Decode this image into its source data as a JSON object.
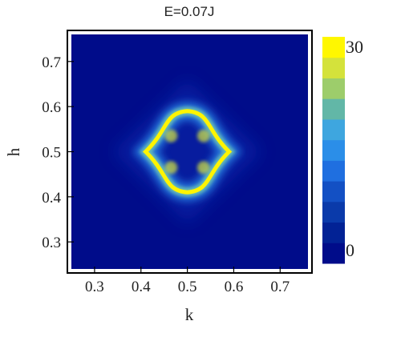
{
  "chart_data": {
    "type": "heatmap",
    "title": "E=0.07J",
    "xlabel": "k",
    "ylabel": "h",
    "xlim": [
      0.25,
      0.76
    ],
    "ylim": [
      0.24,
      0.76
    ],
    "xticks": [
      0.3,
      0.4,
      0.5,
      0.6,
      0.7
    ],
    "yticks": [
      0.3,
      0.4,
      0.5,
      0.6,
      0.7
    ],
    "xtick_labels": [
      "0.3",
      "0.4",
      "0.5",
      "0.6",
      "0.7"
    ],
    "ytick_labels": [
      "0.3",
      "0.4",
      "0.5",
      "0.6",
      "0.7"
    ],
    "grid": false,
    "colorbar": {
      "min": 0,
      "max": 30,
      "min_label": "0",
      "max_label": "30",
      "colors": [
        "#000c8a",
        "#022295",
        "#0a3aaa",
        "#1350c4",
        "#1f6fe0",
        "#2b8ee8",
        "#3ea6df",
        "#62b7a7",
        "#9dcd6b",
        "#d4e23b",
        "#fff700"
      ]
    },
    "features": {
      "center": [
        0.5,
        0.5
      ],
      "ring_extrema_h": [
        0.41,
        0.59
      ],
      "ring_extrema_k": [
        0.41,
        0.59
      ],
      "diamond_halo_half_width": 0.16
    }
  }
}
